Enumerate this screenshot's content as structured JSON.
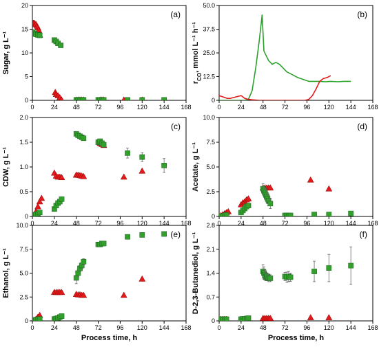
{
  "chart_data": [
    {
      "panel": "(a)",
      "type": "scatter",
      "xlabel": "",
      "ylabel": "Sugar, g L⁻¹",
      "xlim": [
        0,
        168
      ],
      "ylim": [
        0,
        20
      ],
      "xticks": [
        0,
        24,
        48,
        72,
        96,
        120,
        144,
        168
      ],
      "yticks": [
        0,
        5,
        10,
        15,
        20
      ],
      "ytick_labels": [
        "0",
        "5",
        "10",
        "15",
        "20"
      ],
      "series": [
        {
          "marker": "triangle",
          "color": "#e31a1c",
          "x": [
            1,
            2,
            3,
            4,
            5,
            6,
            7,
            8,
            25,
            26,
            28,
            30,
            32,
            48,
            50,
            52,
            54,
            56,
            74,
            76,
            78,
            100,
            120
          ],
          "y": [
            16.3,
            16.3,
            16.1,
            16.0,
            15.7,
            15.3,
            14.8,
            13.8,
            1.7,
            1.3,
            1.0,
            0.6,
            0.1,
            0.1,
            0.1,
            0.1,
            0.1,
            0.1,
            0.1,
            0.1,
            0.1,
            0.1,
            0.1
          ]
        },
        {
          "marker": "square",
          "color": "#33a02c",
          "x": [
            0,
            2,
            4,
            6,
            8,
            24,
            26,
            28,
            31,
            48,
            50,
            52,
            54,
            56,
            72,
            74,
            76,
            78,
            104,
            120,
            144
          ],
          "y": [
            14.4,
            14.1,
            13.9,
            13.8,
            13.7,
            12.7,
            12.4,
            12.0,
            11.6,
            0.1,
            0.1,
            0.1,
            0.1,
            0.1,
            0.1,
            0.1,
            0.1,
            0.1,
            0.1,
            0.1,
            0.1
          ]
        }
      ]
    },
    {
      "panel": "(b)",
      "type": "line",
      "xlabel": "",
      "ylabel": "r_CO, mmol L⁻¹ h⁻¹",
      "xlim": [
        0,
        168
      ],
      "ylim": [
        0,
        50
      ],
      "xticks": [
        0,
        24,
        48,
        72,
        96,
        120,
        144,
        168
      ],
      "yticks": [
        0,
        12.5,
        25,
        37.5,
        50
      ],
      "ytick_labels": [
        "0",
        "12.5",
        "25.0",
        "37.5",
        "50.0"
      ],
      "series": [
        {
          "color": "#2ca02c",
          "x": [
            0,
            10,
            20,
            28,
            32,
            36,
            40,
            44,
            47,
            49,
            51,
            54,
            58,
            62,
            66,
            70,
            74,
            80,
            86,
            92,
            98,
            104,
            110,
            116,
            122,
            130,
            136,
            144
          ],
          "y": [
            0,
            0,
            0,
            0,
            0.5,
            5,
            17,
            32,
            45,
            26,
            24,
            21,
            19,
            20,
            19,
            17,
            15,
            13.5,
            12,
            11,
            10,
            10,
            10,
            9.8,
            10,
            9.8,
            10,
            10
          ]
        },
        {
          "color": "#e31a1c",
          "x": [
            0,
            3,
            6,
            9,
            12,
            16,
            20,
            24,
            28,
            32,
            36,
            44,
            52,
            60,
            70,
            80,
            88,
            94,
            98,
            102,
            106,
            110,
            114,
            118,
            122
          ],
          "y": [
            2.5,
            2,
            1.5,
            1,
            1,
            1.5,
            2,
            2.5,
            1,
            0.5,
            0.3,
            0,
            0,
            0,
            0,
            0,
            0,
            0,
            0.5,
            2.5,
            6,
            10,
            11.5,
            12,
            13
          ]
        }
      ]
    },
    {
      "panel": "(c)",
      "type": "scatter",
      "xlabel": "",
      "ylabel": "CDW, g L⁻¹",
      "xlim": [
        0,
        168
      ],
      "ylim": [
        0,
        2
      ],
      "xticks": [
        0,
        24,
        48,
        72,
        96,
        120,
        144,
        168
      ],
      "yticks": [
        0,
        0.5,
        1,
        1.5,
        2
      ],
      "ytick_labels": [
        "0",
        "0.5",
        "1.0",
        "1.5",
        "2.0"
      ],
      "series": [
        {
          "marker": "triangle",
          "color": "#e31a1c",
          "x": [
            0,
            2,
            4,
            6,
            8,
            10,
            24,
            26,
            28,
            30,
            32,
            48,
            50,
            52,
            54,
            56,
            74,
            76,
            78,
            100,
            120
          ],
          "y": [
            0.02,
            0.04,
            0.1,
            0.2,
            0.3,
            0.37,
            0.88,
            0.82,
            0.8,
            0.8,
            0.79,
            0.84,
            0.84,
            0.83,
            0.82,
            0.81,
            1.48,
            1.46,
            1.44,
            0.8,
            0.92
          ]
        },
        {
          "marker": "square",
          "color": "#33a02c",
          "x": [
            0,
            2,
            4,
            6,
            8,
            24,
            26,
            28,
            30,
            32,
            48,
            50,
            52,
            54,
            56,
            72,
            74,
            76,
            78,
            104,
            120,
            144
          ],
          "y": [
            0.02,
            0.03,
            0.04,
            0.06,
            0.08,
            0.15,
            0.22,
            0.27,
            0.3,
            0.35,
            1.67,
            1.64,
            1.62,
            1.6,
            1.58,
            1.5,
            1.52,
            1.48,
            1.45,
            1.28,
            1.2,
            1.03
          ],
          "err": [
            0,
            0,
            0,
            0,
            0,
            0,
            0,
            0,
            0,
            0,
            0,
            0,
            0,
            0,
            0,
            0,
            0,
            0,
            0,
            0.1,
            0.09,
            0.14
          ]
        }
      ]
    },
    {
      "panel": "(d)",
      "type": "scatter",
      "xlabel": "",
      "ylabel": "Acetate, g L⁻¹",
      "xlim": [
        0,
        168
      ],
      "ylim": [
        0,
        10
      ],
      "xticks": [
        0,
        24,
        48,
        72,
        96,
        120,
        144,
        168
      ],
      "yticks": [
        0,
        2.5,
        5,
        7.5,
        10
      ],
      "ytick_labels": [
        "0",
        "2.5",
        "5.0",
        "7.5",
        "10.0"
      ],
      "series": [
        {
          "marker": "triangle",
          "color": "#e31a1c",
          "x": [
            0,
            2,
            4,
            6,
            8,
            10,
            24,
            26,
            28,
            30,
            32,
            48,
            50,
            52,
            54,
            56,
            100,
            120
          ],
          "y": [
            0.05,
            0.1,
            0.2,
            0.3,
            0.4,
            0.5,
            1.2,
            1.4,
            1.5,
            1.7,
            1.8,
            2.9,
            2.9,
            2.9,
            2.9,
            2.9,
            3.7,
            2.8
          ]
        },
        {
          "marker": "square",
          "color": "#33a02c",
          "x": [
            0,
            2,
            4,
            6,
            8,
            24,
            26,
            28,
            30,
            32,
            48,
            49,
            50,
            51,
            52,
            53,
            54,
            56,
            72,
            74,
            76,
            78,
            104,
            120,
            144
          ],
          "y": [
            0,
            0,
            0.05,
            0.1,
            0.15,
            0.4,
            0.6,
            0.8,
            1.0,
            1.1,
            2.8,
            2.6,
            2.4,
            2.2,
            2.0,
            1.8,
            1.6,
            1.3,
            0.1,
            0.1,
            0.1,
            0.1,
            0.2,
            0.2,
            0.3
          ],
          "err": [
            0,
            0,
            0,
            0,
            0,
            0,
            0,
            0,
            0,
            0,
            0.5,
            0.5,
            0.5,
            0.5,
            0.5,
            0.5,
            0.5,
            0.5,
            0,
            0,
            0,
            0,
            0,
            0.1,
            0.2
          ]
        }
      ]
    },
    {
      "panel": "(e)",
      "type": "scatter",
      "xlabel": "Process time, h",
      "ylabel": "Ethanol, g L⁻¹",
      "xlim": [
        0,
        168
      ],
      "ylim": [
        0,
        10
      ],
      "xticks": [
        0,
        24,
        48,
        72,
        96,
        120,
        144,
        168
      ],
      "yticks": [
        0,
        2.5,
        5,
        7.5,
        10
      ],
      "ytick_labels": [
        "0",
        "2.5",
        "5.0",
        "7.5",
        "10.0"
      ],
      "series": [
        {
          "marker": "triangle",
          "color": "#e31a1c",
          "x": [
            0,
            2,
            4,
            6,
            8,
            24,
            26,
            28,
            30,
            32,
            48,
            50,
            52,
            54,
            56,
            100,
            120
          ],
          "y": [
            0.05,
            0.1,
            0.2,
            0.4,
            0.6,
            3.0,
            3.0,
            3.0,
            3.0,
            3.0,
            2.8,
            2.75,
            2.75,
            2.7,
            2.7,
            2.7,
            4.4
          ]
        },
        {
          "marker": "square",
          "color": "#33a02c",
          "x": [
            0,
            2,
            4,
            6,
            8,
            24,
            26,
            28,
            30,
            32,
            48,
            50,
            52,
            54,
            56,
            72,
            74,
            76,
            78,
            104,
            120,
            144
          ],
          "y": [
            0.05,
            0.1,
            0.1,
            0.15,
            0.2,
            0.2,
            0.25,
            0.3,
            0.4,
            0.5,
            4.5,
            5.0,
            5.5,
            5.8,
            6.2,
            8.0,
            8.0,
            8.1,
            8.1,
            8.8,
            9.0,
            9.1
          ],
          "err": [
            0,
            0,
            0,
            0,
            0,
            0,
            0,
            0,
            0,
            0,
            0.6,
            0.4,
            0.3,
            0.3,
            0.3,
            0,
            0,
            0,
            0,
            0,
            0,
            0
          ]
        }
      ]
    },
    {
      "panel": "(f)",
      "type": "scatter",
      "xlabel": "Process time, h",
      "ylabel": "D-2,3-Butanediol, g L⁻¹",
      "xlim": [
        0,
        168
      ],
      "ylim": [
        0,
        2.8
      ],
      "xticks": [
        0,
        24,
        48,
        72,
        96,
        120,
        144,
        168
      ],
      "yticks": [
        0,
        0.7,
        1.4,
        2.1,
        2.8
      ],
      "ytick_labels": [
        "0",
        "0.7",
        "1.4",
        "2.1",
        "2.8"
      ],
      "series": [
        {
          "marker": "triangle",
          "color": "#e31a1c",
          "x": [
            0,
            2,
            4,
            6,
            8,
            24,
            26,
            28,
            30,
            32,
            48,
            50,
            52,
            54,
            56,
            100,
            120
          ],
          "y": [
            0.05,
            0.05,
            0.05,
            0.05,
            0.05,
            0.05,
            0.05,
            0.05,
            0.05,
            0.05,
            0.08,
            0.08,
            0.08,
            0.08,
            0.08,
            0.1,
            0.1
          ]
        },
        {
          "marker": "square",
          "color": "#33a02c",
          "x": [
            0,
            2,
            4,
            6,
            8,
            24,
            26,
            28,
            30,
            32,
            48,
            49,
            50,
            51,
            52,
            53,
            54,
            56,
            72,
            74,
            76,
            78,
            104,
            120,
            144
          ],
          "y": [
            0.05,
            0.05,
            0.05,
            0.05,
            0.05,
            0.05,
            0.06,
            0.06,
            0.07,
            0.08,
            1.45,
            1.4,
            1.35,
            1.3,
            1.28,
            1.3,
            1.25,
            1.25,
            1.3,
            1.28,
            1.3,
            1.28,
            1.45,
            1.55,
            1.62
          ],
          "err": [
            0,
            0,
            0,
            0,
            0,
            0,
            0,
            0,
            0,
            0,
            0.2,
            0.18,
            0.15,
            0.12,
            0.1,
            0.1,
            0.1,
            0.1,
            0.12,
            0.15,
            0.15,
            0.12,
            0.3,
            0.4,
            0.55
          ]
        }
      ]
    }
  ]
}
